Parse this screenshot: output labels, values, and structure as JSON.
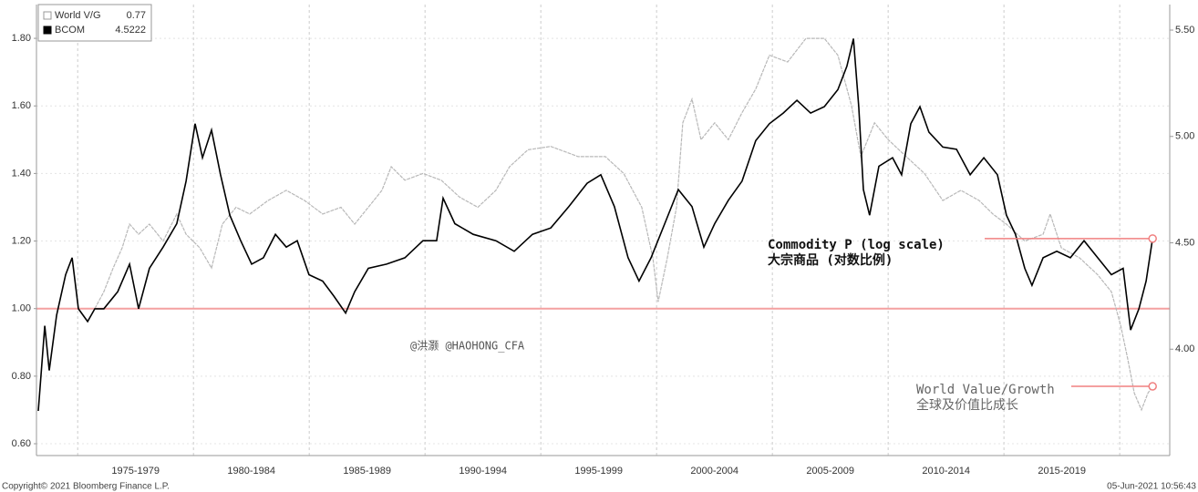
{
  "chart_data": {
    "type": "line",
    "xlim": [
      1973.22,
      2022.16
    ],
    "xticks": [
      {
        "value": 1977.5,
        "label": "1975-1979"
      },
      {
        "value": 1982.5,
        "label": "1980-1984"
      },
      {
        "value": 1987.5,
        "label": "1985-1989"
      },
      {
        "value": 1992.5,
        "label": "1990-1994"
      },
      {
        "value": 1997.5,
        "label": "1995-1999"
      },
      {
        "value": 2002.5,
        "label": "2000-2004"
      },
      {
        "value": 2007.5,
        "label": "2005-2009"
      },
      {
        "value": 2012.5,
        "label": "2010-2014"
      },
      {
        "value": 2017.5,
        "label": "2015-2019"
      }
    ],
    "ylim": [
      0.565,
      1.9
    ],
    "yticks": [
      {
        "value": 0.6,
        "label": "0.60"
      },
      {
        "value": 0.8,
        "label": "0.80"
      },
      {
        "value": 1.0,
        "label": "1.00"
      },
      {
        "value": 1.2,
        "label": "1.20"
      },
      {
        "value": 1.4,
        "label": "1.40"
      },
      {
        "value": 1.6,
        "label": "1.60"
      },
      {
        "value": 1.8,
        "label": "1.80"
      }
    ],
    "y2lim": [
      3.5,
      5.62
    ],
    "y2ticks": [
      {
        "value": 4.0,
        "label": "4.00"
      },
      {
        "value": 4.5,
        "label": "4.50"
      },
      {
        "value": 5.0,
        "label": "5.00"
      },
      {
        "value": 5.5,
        "label": "5.50"
      }
    ],
    "grid": true,
    "legend": "top-left",
    "reference_lines": [
      {
        "value": 1.0,
        "color": "#f4a0a0"
      }
    ],
    "series": [
      {
        "name": "World V/G",
        "legend_value": "0.77",
        "color": "#b8b8b8",
        "axis": "y",
        "annotation": [
          "World Value/Growth",
          "全球及价值比成长"
        ],
        "x": [
          1975.74,
          1976.13,
          1976.53,
          1976.92,
          1977.24,
          1977.63,
          1978.1,
          1978.69,
          1979.28,
          1979.68,
          1980.27,
          1980.78,
          1981.25,
          1981.84,
          1982.43,
          1983.22,
          1984.01,
          1984.8,
          1985.58,
          1986.37,
          1986.96,
          1987.55,
          1988.14,
          1988.54,
          1989.13,
          1989.91,
          1990.7,
          1991.49,
          1992.28,
          1993.06,
          1993.65,
          1994.44,
          1995.43,
          1996.61,
          1997.79,
          1998.58,
          1999.36,
          1999.84,
          2000.07,
          2000.46,
          2000.86,
          2001.13,
          2001.53,
          2001.92,
          2002.51,
          2003.1,
          2003.69,
          2004.28,
          2004.87,
          2005.66,
          2006.45,
          2007.24,
          2007.83,
          2008.42,
          2008.82,
          2009.41,
          2010.0,
          2010.78,
          2011.57,
          2012.36,
          2013.14,
          2013.93,
          2014.52,
          2015.11,
          2015.9,
          2016.69,
          2017.0,
          2017.48,
          2018.27,
          2019.05,
          2019.64,
          2020.04,
          2020.35,
          2020.63,
          2020.94,
          2021.22,
          2021.42
        ],
        "values": [
          1.0,
          1.05,
          1.12,
          1.18,
          1.25,
          1.22,
          1.25,
          1.2,
          1.28,
          1.22,
          1.18,
          1.12,
          1.25,
          1.3,
          1.28,
          1.32,
          1.35,
          1.32,
          1.28,
          1.3,
          1.25,
          1.3,
          1.35,
          1.42,
          1.38,
          1.4,
          1.38,
          1.33,
          1.3,
          1.35,
          1.42,
          1.47,
          1.48,
          1.45,
          1.45,
          1.4,
          1.3,
          1.15,
          1.02,
          1.15,
          1.3,
          1.55,
          1.62,
          1.5,
          1.55,
          1.5,
          1.58,
          1.65,
          1.75,
          1.73,
          1.8,
          1.8,
          1.75,
          1.6,
          1.45,
          1.55,
          1.5,
          1.45,
          1.4,
          1.32,
          1.35,
          1.32,
          1.28,
          1.25,
          1.2,
          1.22,
          1.28,
          1.18,
          1.15,
          1.1,
          1.05,
          0.95,
          0.85,
          0.75,
          0.7,
          0.75,
          0.77
        ]
      },
      {
        "name": "BCOM",
        "legend_value": "4.5222",
        "color": "#000000",
        "axis": "y2",
        "annotation": [
          "Commodity P (log scale)",
          "大宗商品 (对数比例)"
        ],
        "x": [
          1973.3,
          1973.58,
          1973.77,
          1974.09,
          1974.48,
          1974.76,
          1975.03,
          1975.43,
          1975.74,
          1976.13,
          1976.73,
          1977.24,
          1977.63,
          1978.1,
          1978.69,
          1979.28,
          1979.68,
          1980.07,
          1980.39,
          1980.78,
          1981.17,
          1981.57,
          1982.04,
          1982.51,
          1983.02,
          1983.54,
          1984.01,
          1984.48,
          1984.99,
          1985.58,
          1986.06,
          1986.57,
          1986.96,
          1987.55,
          1988.34,
          1989.13,
          1989.91,
          1990.5,
          1990.78,
          1991.29,
          1992.08,
          1993.06,
          1993.85,
          1994.64,
          1995.43,
          1996.21,
          1997.0,
          1997.59,
          1998.18,
          1998.77,
          1999.24,
          1999.76,
          2000.35,
          2000.94,
          2001.53,
          2002.04,
          2002.51,
          2003.1,
          2003.69,
          2004.28,
          2004.87,
          2005.47,
          2006.06,
          2006.65,
          2007.24,
          2007.83,
          2008.22,
          2008.5,
          2008.73,
          2008.93,
          2009.2,
          2009.6,
          2010.19,
          2010.58,
          2010.98,
          2011.37,
          2011.76,
          2012.36,
          2012.95,
          2013.54,
          2014.13,
          2014.72,
          2015.11,
          2015.5,
          2015.9,
          2016.21,
          2016.69,
          2017.28,
          2017.87,
          2018.46,
          2019.05,
          2019.64,
          2020.15,
          2020.47,
          2020.83,
          2021.14,
          2021.42
        ],
        "values": [
          3.71,
          4.11,
          3.9,
          4.16,
          4.35,
          4.43,
          4.19,
          4.13,
          4.19,
          4.19,
          4.27,
          4.4,
          4.19,
          4.38,
          4.48,
          4.59,
          4.79,
          5.06,
          4.9,
          5.03,
          4.82,
          4.63,
          4.51,
          4.4,
          4.43,
          4.54,
          4.48,
          4.51,
          4.35,
          4.32,
          4.25,
          4.17,
          4.27,
          4.38,
          4.4,
          4.43,
          4.51,
          4.51,
          4.71,
          4.59,
          4.54,
          4.51,
          4.46,
          4.54,
          4.57,
          4.67,
          4.78,
          4.82,
          4.67,
          4.43,
          4.32,
          4.43,
          4.59,
          4.75,
          4.67,
          4.48,
          4.59,
          4.7,
          4.79,
          4.98,
          5.06,
          5.11,
          5.17,
          5.11,
          5.14,
          5.22,
          5.33,
          5.46,
          5.14,
          4.75,
          4.63,
          4.86,
          4.9,
          4.82,
          5.06,
          5.14,
          5.02,
          4.95,
          4.94,
          4.82,
          4.9,
          4.82,
          4.63,
          4.54,
          4.38,
          4.3,
          4.43,
          4.46,
          4.43,
          4.51,
          4.43,
          4.35,
          4.38,
          4.09,
          4.19,
          4.32,
          4.52
        ]
      }
    ],
    "watermark": "@洪灏 @HAOHONG_CFA",
    "footer_left": "Copyright© 2021 Bloomberg Finance L.P.",
    "footer_right": "05-Jun-2021 10:56:43"
  }
}
